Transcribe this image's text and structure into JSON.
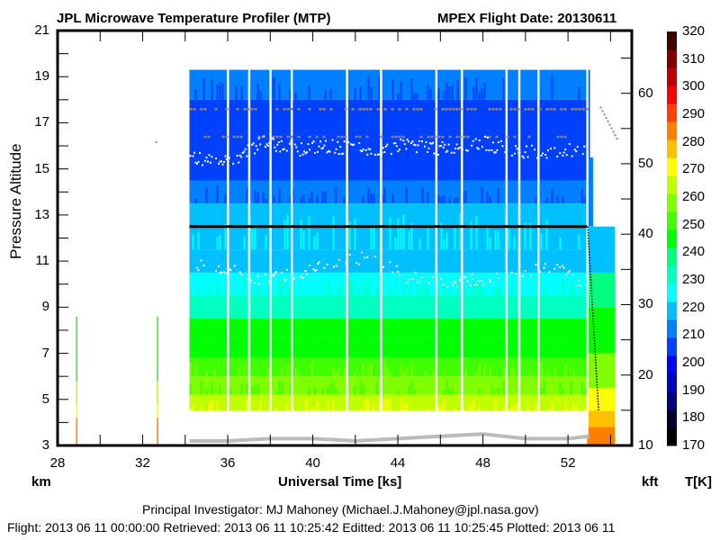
{
  "header": {
    "title_left": "JPL Microwave Temperature Profiler (MTP)",
    "title_right": "MPEX  Flight Date: 20130611"
  },
  "footer": {
    "pi_line": "Principal Investigator: MJ Mahoney (Michael.J.Mahoney@jpl.nasa.gov)",
    "dates_line": "Flight: 2013 06 11 00:00:00   Retrieved: 2013 06 11 10:25:42   Editted: 2013 06 11 10:25:45  Plotted: 2013 06 11"
  },
  "chart_data": {
    "type": "heatmap",
    "title": "JPL Microwave Temperature Profiler (MTP)",
    "subtitle": "MPEX  Flight Date: 20130611",
    "xlabel": "Universal Time [ks]",
    "ylabel": "Pressure Altitude",
    "y_unit_left": "km",
    "y_unit_right": "kft",
    "colorbar_label": "T[K]",
    "xlim": [
      28,
      55
    ],
    "ylim_km": [
      3,
      21
    ],
    "ylim_kft": [
      10,
      68.9
    ],
    "x_ticks": [
      28,
      32,
      36,
      40,
      44,
      48,
      52
    ],
    "x_minor_step": 2,
    "y_ticks_km": [
      3,
      5,
      7,
      9,
      11,
      13,
      15,
      17,
      19,
      21
    ],
    "y_ticks_kft": [
      10,
      20,
      30,
      40,
      50,
      60
    ],
    "colorbar": {
      "min": 170,
      "max": 320,
      "step": 10,
      "ticks": [
        170,
        180,
        190,
        200,
        210,
        220,
        230,
        240,
        250,
        260,
        270,
        280,
        290,
        300,
        310,
        320
      ],
      "colors": [
        "#000000",
        "#000030",
        "#000080",
        "#0000c0",
        "#0000ff",
        "#0040ff",
        "#0080ff",
        "#00c0ff",
        "#00ffff",
        "#00ffc0",
        "#00ff80",
        "#00ff00",
        "#40ff00",
        "#80ff00",
        "#c0ff00",
        "#ffff00",
        "#ffc000",
        "#ff8000",
        "#ff4000",
        "#ff0000",
        "#c00000",
        "#800000",
        "#400000"
      ]
    },
    "curtain": {
      "x_range": [
        34.2,
        54.2
      ],
      "alt_range_km": [
        4.5,
        19.3
      ],
      "temperature_bands": [
        {
          "alt_km": [
            18.0,
            19.3
          ],
          "T": 212
        },
        {
          "alt_km": [
            14.5,
            18.0
          ],
          "T": 203
        },
        {
          "alt_km": [
            13.5,
            14.5
          ],
          "T": 212
        },
        {
          "alt_km": [
            11.5,
            13.5
          ],
          "T": 218
        },
        {
          "alt_km": [
            10.5,
            11.5
          ],
          "T": 222
        },
        {
          "alt_km": [
            9.5,
            10.5
          ],
          "T": 228
        },
        {
          "alt_km": [
            8.5,
            9.5
          ],
          "T": 235
        },
        {
          "alt_km": [
            7.7,
            8.5
          ],
          "T": 242
        },
        {
          "alt_km": [
            6.8,
            7.7
          ],
          "T": 248
        },
        {
          "alt_km": [
            6.0,
            6.8
          ],
          "T": 252
        },
        {
          "alt_km": [
            5.2,
            6.0
          ],
          "T": 258
        },
        {
          "alt_km": [
            4.5,
            5.2
          ],
          "T": 265
        }
      ],
      "data_gaps_ks": [
        36.0,
        37.0,
        38.0,
        39.0,
        41.6,
        43.2,
        45.8,
        47.0,
        49.1,
        49.7,
        50.6,
        52.9
      ],
      "aircraft_altitude_km": 12.5,
      "aircraft_alt_x_range": [
        34.2,
        52.9
      ]
    },
    "isolated_profiles": [
      {
        "x": 28.9,
        "alt_top_km": 8.6
      },
      {
        "x": 32.7,
        "alt_top_km": 8.6
      }
    ],
    "tropopause_points": {
      "upper_trop_km": [
        15.6,
        15.3,
        16.2,
        15.9,
        16.0,
        15.8,
        16.1,
        15.9,
        16.2,
        15.8,
        15.7,
        16.0
      ],
      "lower_trop_km": [
        11.0,
        10.7,
        10.3,
        10.5,
        10.9,
        11.2,
        10.4,
        10.0,
        10.3,
        10.6,
        10.8,
        10.0
      ]
    },
    "ground_track_km": {
      "x": [
        34.2,
        36,
        38,
        40,
        42,
        44,
        46,
        48,
        50,
        52,
        53
      ],
      "alt": [
        3.2,
        3.2,
        3.3,
        3.3,
        3.2,
        3.3,
        3.4,
        3.5,
        3.3,
        3.3,
        3.4
      ]
    },
    "gray_layers_km": [
      17.6,
      16.4
    ]
  }
}
